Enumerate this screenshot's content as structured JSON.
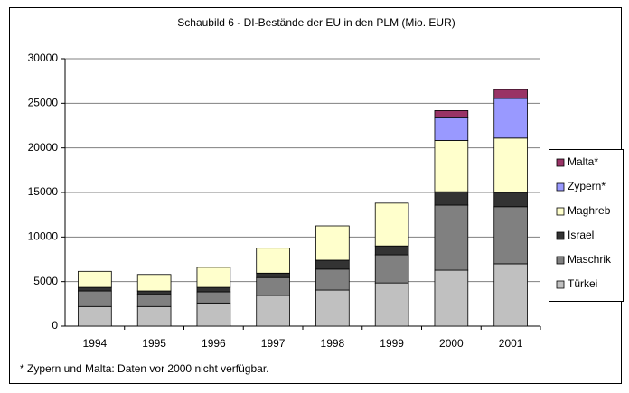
{
  "chart_data": {
    "type": "stacked-bar",
    "title": "Schaubild 6 - DI-Bestände der EU in den PLM (Mio. EUR)",
    "categories": [
      "1994",
      "1995",
      "1996",
      "1997",
      "1998",
      "1999",
      "2000",
      "2001"
    ],
    "series": [
      {
        "name": "Türkei",
        "color": "#c0c0c0",
        "values": [
          2200,
          2200,
          2600,
          3450,
          4050,
          4850,
          6280,
          7000
        ]
      },
      {
        "name": "Maschrik",
        "color": "#808080",
        "values": [
          1750,
          1350,
          1250,
          2000,
          2350,
          3150,
          7300,
          6400
        ]
      },
      {
        "name": "Israel",
        "color": "#333333",
        "values": [
          400,
          400,
          500,
          500,
          1000,
          1000,
          1500,
          1600
        ]
      },
      {
        "name": "Maghreb",
        "color": "#ffffcc",
        "values": [
          1800,
          1850,
          2250,
          2800,
          3850,
          4800,
          5750,
          6100
        ]
      },
      {
        "name": "Zypern*",
        "color": "#9999ff",
        "values": [
          null,
          null,
          null,
          null,
          null,
          null,
          2550,
          4450
        ]
      },
      {
        "name": "Malta*",
        "color": "#993366",
        "values": [
          null,
          null,
          null,
          null,
          null,
          null,
          800,
          1000
        ]
      }
    ],
    "ylim": [
      0,
      30000
    ],
    "yticks": [
      0,
      5000,
      10000,
      15000,
      20000,
      25000,
      30000
    ],
    "grid": true,
    "legend": "right",
    "footnote": "* Zypern und Malta: Daten vor 2000 nicht verfügbar."
  }
}
